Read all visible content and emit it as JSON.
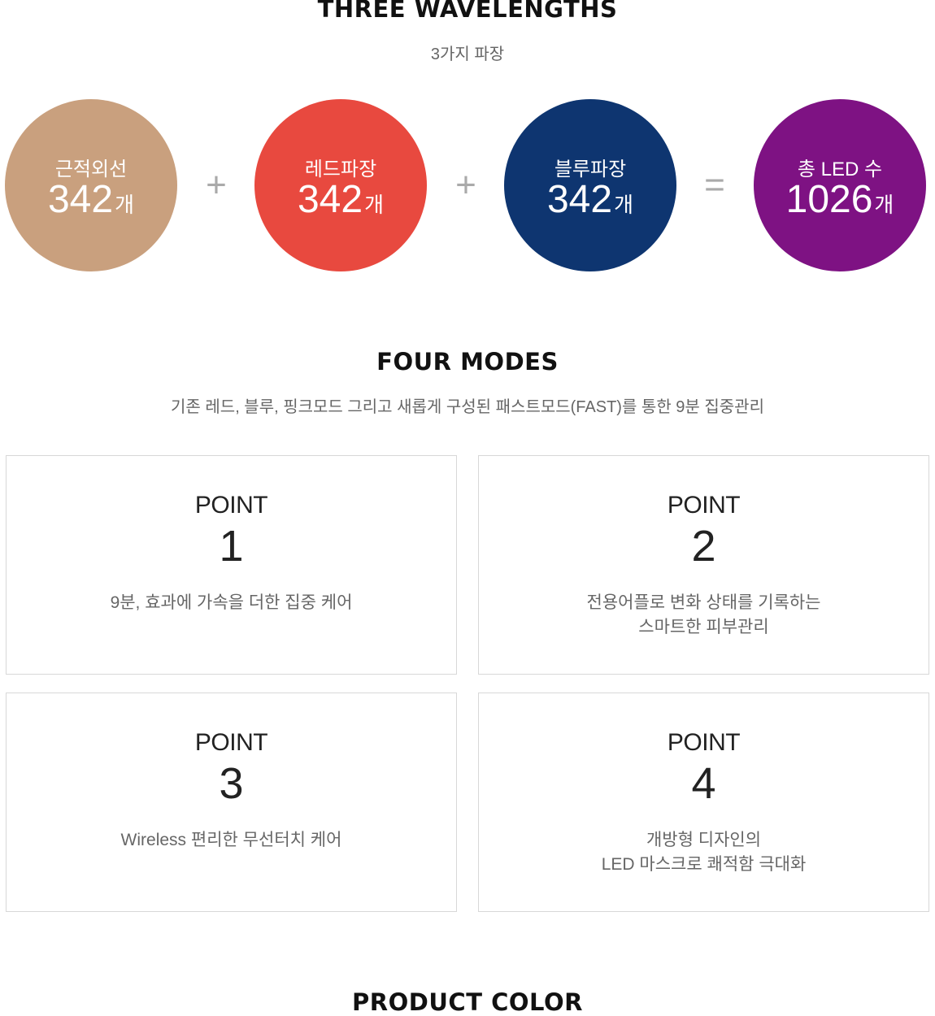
{
  "wavelengths": {
    "title": "THREE WAVELENGTHS",
    "subtitle": "3가지 파장",
    "circles": [
      {
        "label": "근적외선",
        "value": "342",
        "unit": "개",
        "color": "#C9A07E"
      },
      {
        "label": "레드파장",
        "value": "342",
        "unit": "개",
        "color": "#E8493F"
      },
      {
        "label": "블루파장",
        "value": "342",
        "unit": "개",
        "color": "#0E3570"
      },
      {
        "label": "총 LED 수",
        "value": "1026",
        "unit": "개",
        "color": "#7E1283"
      }
    ],
    "operators": [
      "+",
      "+",
      "="
    ]
  },
  "modes": {
    "title": "FOUR MODES",
    "subtitle": "기존 레드, 블루, 핑크모드 그리고 새롭게 구성된 패스트모드(FAST)를 통한 9분 집중관리",
    "points": [
      {
        "label": "POINT",
        "number": "1",
        "line1": "9분, 효과에 가속을 더한 집중 케어",
        "line2": ""
      },
      {
        "label": "POINT",
        "number": "2",
        "line1": "전용어플로 변화 상태를 기록하는",
        "line2": "스마트한 피부관리"
      },
      {
        "label": "POINT",
        "number": "3",
        "line1": "Wireless 편리한 무선터치 케어",
        "line2": ""
      },
      {
        "label": "POINT",
        "number": "4",
        "line1": "개방형 디자인의",
        "line2": "LED 마스크로 쾌적함 극대화"
      }
    ]
  },
  "color_section": {
    "title": "PRODUCT COLOR"
  }
}
